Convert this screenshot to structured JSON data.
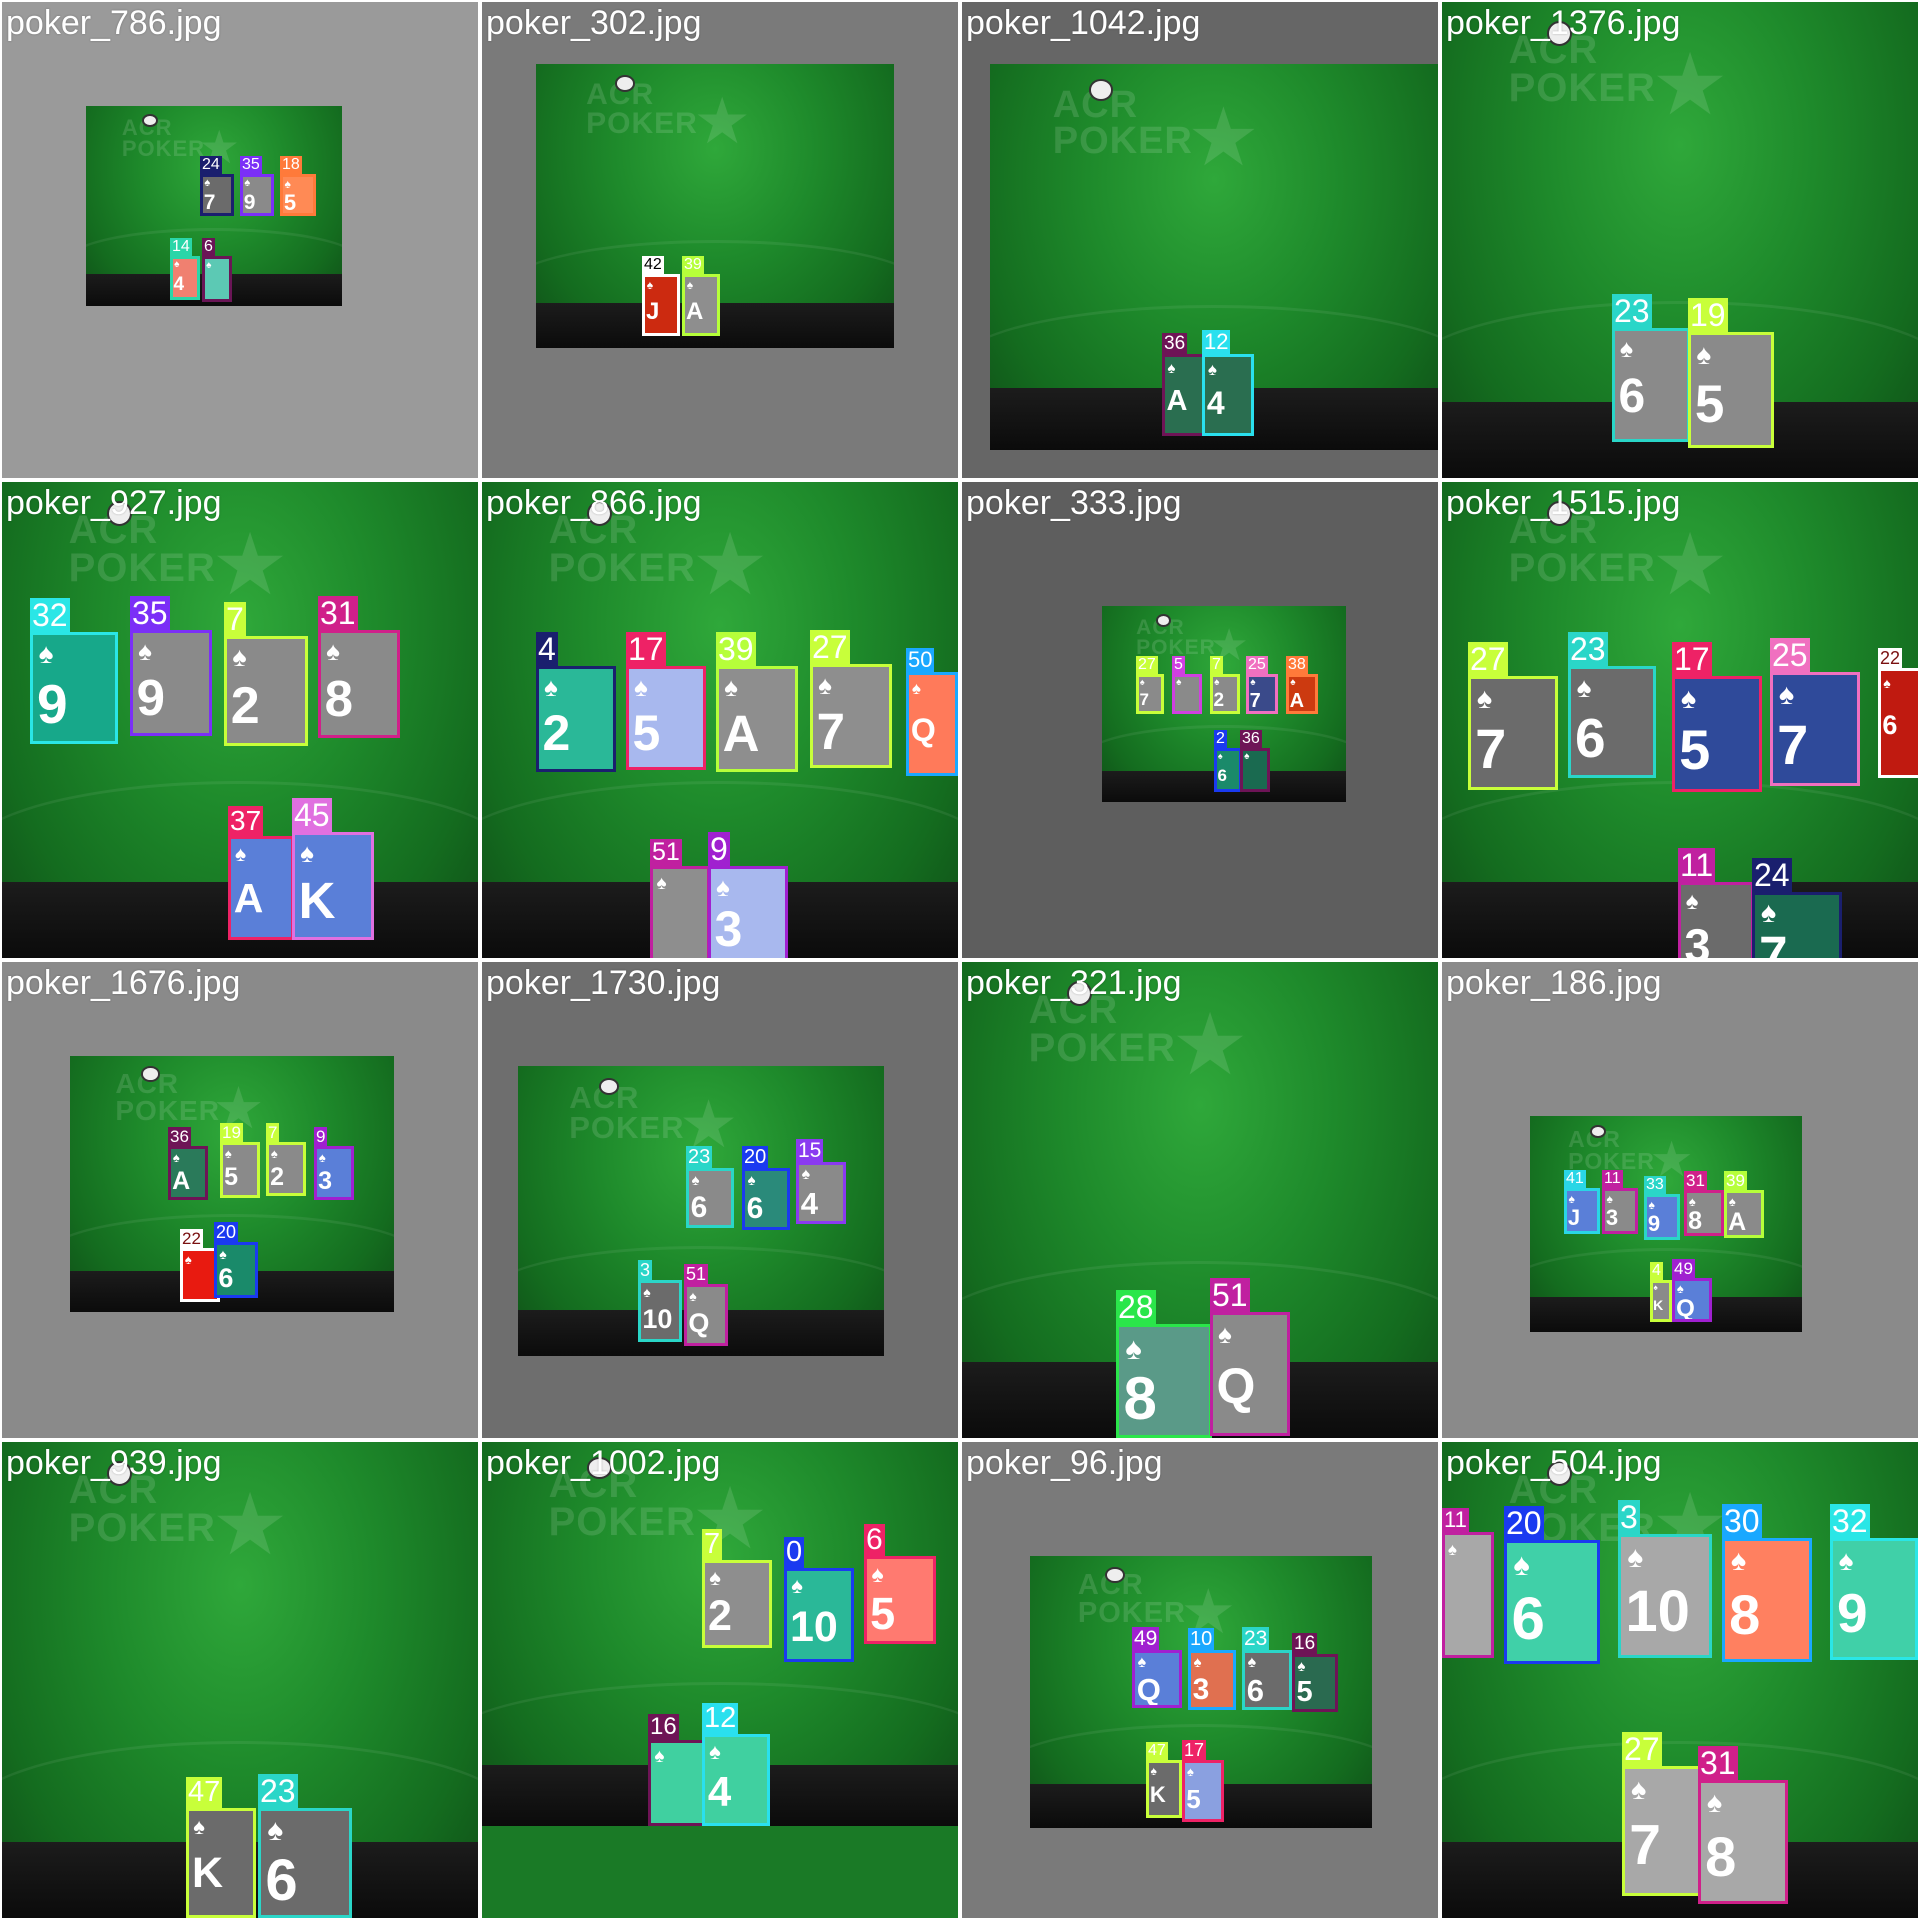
{
  "page": {
    "type": "object-detection-prediction-grid",
    "columns": 4,
    "rows": 4
  },
  "tiles": [
    {
      "file": "poker_786.jpg",
      "bg": "#9a9a9a",
      "detections": [
        {
          "label": "24",
          "color": "#1a1f6e",
          "rank": "7",
          "card": "#6b6b6b"
        },
        {
          "label": "35",
          "color": "#7b2ff7",
          "rank": "9",
          "card": "#8a8a8a"
        },
        {
          "label": "18",
          "color": "#ff7a3a",
          "rank": "5",
          "card": "#ff8a55"
        },
        {
          "label": "14",
          "color": "#2ad6a8",
          "rank": "4",
          "card": "#f08070"
        },
        {
          "label": "6",
          "color": "#6a1556",
          "rank": "",
          "card": "#5cc9b4"
        }
      ]
    },
    {
      "file": "poker_302.jpg",
      "bg": "#7a7a7a",
      "detections": [
        {
          "label": "42",
          "color": "#ffffff",
          "text": "#000000",
          "rank": "J",
          "card": "#cc2a10"
        },
        {
          "label": "39",
          "color": "#b6ff3a",
          "rank": "A",
          "card": "#8e8e8e"
        }
      ]
    },
    {
      "file": "poker_1042.jpg",
      "bg": "#666666",
      "detections": [
        {
          "label": "36",
          "color": "#6e1456",
          "rank": "A",
          "card": "#2a6e50"
        },
        {
          "label": "12",
          "color": "#2ae0ee",
          "rank": "4",
          "card": "#2a6e50"
        }
      ]
    },
    {
      "file": "poker_1376.jpg",
      "bg": "#1f8a2a",
      "detections": [
        {
          "label": "23",
          "color": "#2ad6c8",
          "rank": "6",
          "card": "#8a8a8a"
        },
        {
          "label": "19",
          "color": "#c8ff3a",
          "rank": "5",
          "card": "#8a8a8a"
        }
      ]
    },
    {
      "file": "poker_927.jpg",
      "bg": "#1f8a2a",
      "detections": [
        {
          "label": "32",
          "color": "#2ae6e6",
          "rank": "9",
          "card": "#17a88a"
        },
        {
          "label": "35",
          "color": "#7b2ff7",
          "rank": "9",
          "card": "#8a8a8a"
        },
        {
          "label": "7",
          "color": "#c8ff3a",
          "rank": "2",
          "card": "#8a8a8a"
        },
        {
          "label": "31",
          "color": "#d0208a",
          "rank": "8",
          "card": "#8a8a8a"
        },
        {
          "label": "37",
          "color": "#ee2266",
          "rank": "A",
          "card": "#5a7fd8"
        },
        {
          "label": "45",
          "color": "#e070e0",
          "rank": "K",
          "card": "#5a7fd8"
        }
      ]
    },
    {
      "file": "poker_866.jpg",
      "bg": "#1a7a26",
      "detections": [
        {
          "label": "4",
          "color": "#1a1f6e",
          "rank": "2",
          "card": "#2ab898"
        },
        {
          "label": "17",
          "color": "#ee2266",
          "rank": "5",
          "card": "#a8b8ee"
        },
        {
          "label": "39",
          "color": "#b6ff3a",
          "rank": "A",
          "card": "#8e8e8e"
        },
        {
          "label": "27",
          "color": "#c8ff3a",
          "rank": "7",
          "card": "#8e8e8e"
        },
        {
          "label": "50",
          "color": "#1aa8ff",
          "rank": "Q",
          "card": "#ff7a5a"
        },
        {
          "label": "51",
          "color": "#c020a0",
          "rank": "",
          "card": "#8e8e8e"
        },
        {
          "label": "9",
          "color": "#a020d0",
          "rank": "3",
          "card": "#a8b8ee"
        }
      ]
    },
    {
      "file": "poker_333.jpg",
      "bg": "#5e5e5e",
      "detections": [
        {
          "label": "27",
          "color": "#c8ff3a",
          "rank": "7",
          "card": "#8a8a8a"
        },
        {
          "label": "5",
          "color": "#d040e0",
          "rank": "",
          "card": "#8a8a8a"
        },
        {
          "label": "7",
          "color": "#c8ff3a",
          "rank": "2",
          "card": "#8a8a8a"
        },
        {
          "label": "25",
          "color": "#f070c0",
          "rank": "7",
          "card": "#3a4a8a"
        },
        {
          "label": "38",
          "color": "#ff7a3a",
          "rank": "A",
          "card": "#cc3a10"
        },
        {
          "label": "2",
          "color": "#1a3af0",
          "rank": "6",
          "card": "#1a8a6a"
        },
        {
          "label": "36",
          "color": "#6e1456",
          "rank": "",
          "card": "#1a6a50"
        }
      ]
    },
    {
      "file": "poker_1515.jpg",
      "bg": "#1f8a2a",
      "detections": [
        {
          "label": "27",
          "color": "#c8ff3a",
          "rank": "7",
          "card": "#6b6b6b"
        },
        {
          "label": "23",
          "color": "#2ad6c8",
          "rank": "6",
          "card": "#6b6b6b"
        },
        {
          "label": "17",
          "color": "#ee2266",
          "rank": "5",
          "card": "#2f4a9a"
        },
        {
          "label": "25",
          "color": "#f070c0",
          "rank": "7",
          "card": "#2f4a9a"
        },
        {
          "label": "22",
          "color": "#ffffff",
          "text": "#7a1010",
          "rank": "6",
          "card": "#c01a10"
        },
        {
          "label": "11",
          "color": "#c020a0",
          "rank": "3",
          "card": "#6b6b6b"
        },
        {
          "label": "24",
          "color": "#1a1f6e",
          "rank": "7",
          "card": "#1a6a50"
        }
      ]
    },
    {
      "file": "poker_1676.jpg",
      "bg": "#8a8a8a",
      "detections": [
        {
          "label": "36",
          "color": "#6e1456",
          "rank": "A",
          "card": "#2a7a5a"
        },
        {
          "label": "19",
          "color": "#c8ff3a",
          "rank": "5",
          "card": "#8a8a8a"
        },
        {
          "label": "7",
          "color": "#c8ff3a",
          "rank": "2",
          "card": "#8a8a8a"
        },
        {
          "label": "9",
          "color": "#a020d0",
          "rank": "3",
          "card": "#5a7fd8"
        },
        {
          "label": "22",
          "color": "#ffffff",
          "text": "#7a1010",
          "rank": "",
          "card": "#e81a10"
        },
        {
          "label": "20",
          "color": "#1a3af0",
          "rank": "6",
          "card": "#1a8a6a"
        }
      ]
    },
    {
      "file": "poker_1730.jpg",
      "bg": "#6e6e6e",
      "detections": [
        {
          "label": "23",
          "color": "#2ad6c8",
          "rank": "6",
          "card": "#8a8a8a"
        },
        {
          "label": "20",
          "color": "#1a3af0",
          "rank": "6",
          "card": "#2a8a7a"
        },
        {
          "label": "15",
          "color": "#8a3af0",
          "rank": "4",
          "card": "#8a8a8a"
        },
        {
          "label": "3",
          "color": "#2ad6c8",
          "rank": "10",
          "card": "#6b6b6b"
        },
        {
          "label": "51",
          "color": "#c020a0",
          "rank": "Q",
          "card": "#8a8a8a"
        }
      ]
    },
    {
      "file": "poker_321.jpg",
      "bg": "#5a8a60",
      "detections": [
        {
          "label": "28",
          "color": "#2ae64a",
          "rank": "8",
          "card": "#5a9a88"
        },
        {
          "label": "51",
          "color": "#c020a0",
          "rank": "Q",
          "card": "#8a8a8a"
        }
      ]
    },
    {
      "file": "poker_186.jpg",
      "bg": "#8a8a8a",
      "detections": [
        {
          "label": "41",
          "color": "#2ad6e6",
          "rank": "J",
          "card": "#5a7fd8"
        },
        {
          "label": "11",
          "color": "#c020a0",
          "rank": "3",
          "card": "#8a8a8a"
        },
        {
          "label": "33",
          "color": "#2ad6c8",
          "rank": "9",
          "card": "#5a7fd8"
        },
        {
          "label": "31",
          "color": "#d0208a",
          "rank": "8",
          "card": "#8a8a8a"
        },
        {
          "label": "39",
          "color": "#b6ff3a",
          "rank": "A",
          "card": "#8a8a8a"
        },
        {
          "label": "4",
          "color": "#c8ff3a",
          "rank": "K",
          "card": "#8a8a8a"
        },
        {
          "label": "49",
          "color": "#a020d0",
          "rank": "Q",
          "card": "#5a7fd8"
        }
      ]
    },
    {
      "file": "poker_939.jpg",
      "bg": "#1f7a2a",
      "detections": [
        {
          "label": "47",
          "color": "#c8ff3a",
          "rank": "K",
          "card": "#6b6b6b"
        },
        {
          "label": "23",
          "color": "#2ad6c8",
          "rank": "6",
          "card": "#6b6b6b"
        }
      ]
    },
    {
      "file": "poker_1002.jpg",
      "bg": "#1a7a26",
      "detections": [
        {
          "label": "7",
          "color": "#c8ff3a",
          "rank": "2",
          "card": "#8e8e8e"
        },
        {
          "label": "0",
          "color": "#1a3af0",
          "rank": "10",
          "card": "#2ab898"
        },
        {
          "label": "6",
          "color": "#ee2266",
          "rank": "5",
          "card": "#ff7a70"
        },
        {
          "label": "16",
          "color": "#6e1456",
          "rank": "",
          "card": "#40d0a0"
        },
        {
          "label": "12",
          "color": "#2ae0ee",
          "rank": "4",
          "card": "#40d0a0"
        }
      ]
    },
    {
      "file": "poker_96.jpg",
      "bg": "#7a7a7a",
      "detections": [
        {
          "label": "49",
          "color": "#a020d0",
          "rank": "Q",
          "card": "#5a7fd8"
        },
        {
          "label": "10",
          "color": "#1aa8ff",
          "rank": "3",
          "card": "#e07050"
        },
        {
          "label": "23",
          "color": "#2ad6c8",
          "rank": "6",
          "card": "#6b6b6b"
        },
        {
          "label": "16",
          "color": "#6e1456",
          "rank": "5",
          "card": "#2a6a50"
        },
        {
          "label": "47",
          "color": "#c8ff3a",
          "rank": "K",
          "card": "#6b6b6b"
        },
        {
          "label": "17",
          "color": "#ee2266",
          "rank": "5",
          "card": "#8aa0e0"
        }
      ]
    },
    {
      "file": "poker_504.jpg",
      "bg": "#1f8a2a",
      "detections": [
        {
          "label": "11",
          "color": "#c020a0",
          "rank": "",
          "card": "#a8a8a8"
        },
        {
          "label": "20",
          "color": "#1a3af0",
          "rank": "6",
          "card": "#40d0a8"
        },
        {
          "label": "3",
          "color": "#2ad6c8",
          "rank": "10",
          "card": "#a8a8a8"
        },
        {
          "label": "30",
          "color": "#1aa8ff",
          "rank": "8",
          "card": "#ff8060"
        },
        {
          "label": "32",
          "color": "#2ae6e6",
          "rank": "9",
          "card": "#40d0a8"
        },
        {
          "label": "27",
          "color": "#c8ff3a",
          "rank": "7",
          "card": "#a8a8a8"
        },
        {
          "label": "31",
          "color": "#d0208a",
          "rank": "8",
          "card": "#a8a8a8"
        }
      ]
    }
  ],
  "brand_text": "ACR\nPOKER"
}
